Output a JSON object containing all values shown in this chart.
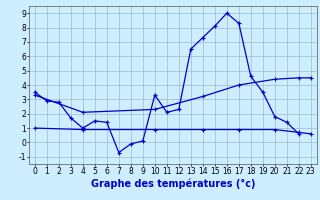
{
  "title": "Graphe des températures (°c)",
  "bg_color": "#cceeff",
  "line_color": "#0000cc",
  "xlim": [
    -0.5,
    23.5
  ],
  "ylim": [
    -1.5,
    9.5
  ],
  "yticks": [
    -1,
    0,
    1,
    2,
    3,
    4,
    5,
    6,
    7,
    8,
    9
  ],
  "xticks": [
    0,
    1,
    2,
    3,
    4,
    5,
    6,
    7,
    8,
    9,
    10,
    11,
    12,
    13,
    14,
    15,
    16,
    17,
    18,
    19,
    20,
    21,
    22,
    23
  ],
  "series1_x": [
    0,
    1,
    2,
    3,
    4,
    5,
    6,
    7,
    8,
    9,
    10,
    11,
    12,
    13,
    14,
    15,
    16,
    17,
    18,
    19,
    20,
    21,
    22
  ],
  "series1_y": [
    3.5,
    2.9,
    2.8,
    1.7,
    1.0,
    1.5,
    1.4,
    -0.7,
    -0.1,
    0.1,
    3.3,
    2.1,
    2.3,
    6.5,
    7.3,
    8.1,
    9.0,
    8.3,
    4.6,
    3.5,
    1.8,
    1.4,
    0.6
  ],
  "series2_x": [
    0,
    4,
    10,
    14,
    17,
    20,
    22,
    23
  ],
  "series2_y": [
    3.3,
    2.1,
    2.3,
    3.2,
    4.0,
    4.4,
    4.5,
    4.5
  ],
  "series3_x": [
    0,
    4,
    10,
    14,
    17,
    20,
    22,
    23
  ],
  "series3_y": [
    1.0,
    0.9,
    0.9,
    0.9,
    0.9,
    0.9,
    0.7,
    0.6
  ],
  "grid_color": "#99bbcc",
  "tick_fontsize": 5.5,
  "label_fontsize": 7.0
}
